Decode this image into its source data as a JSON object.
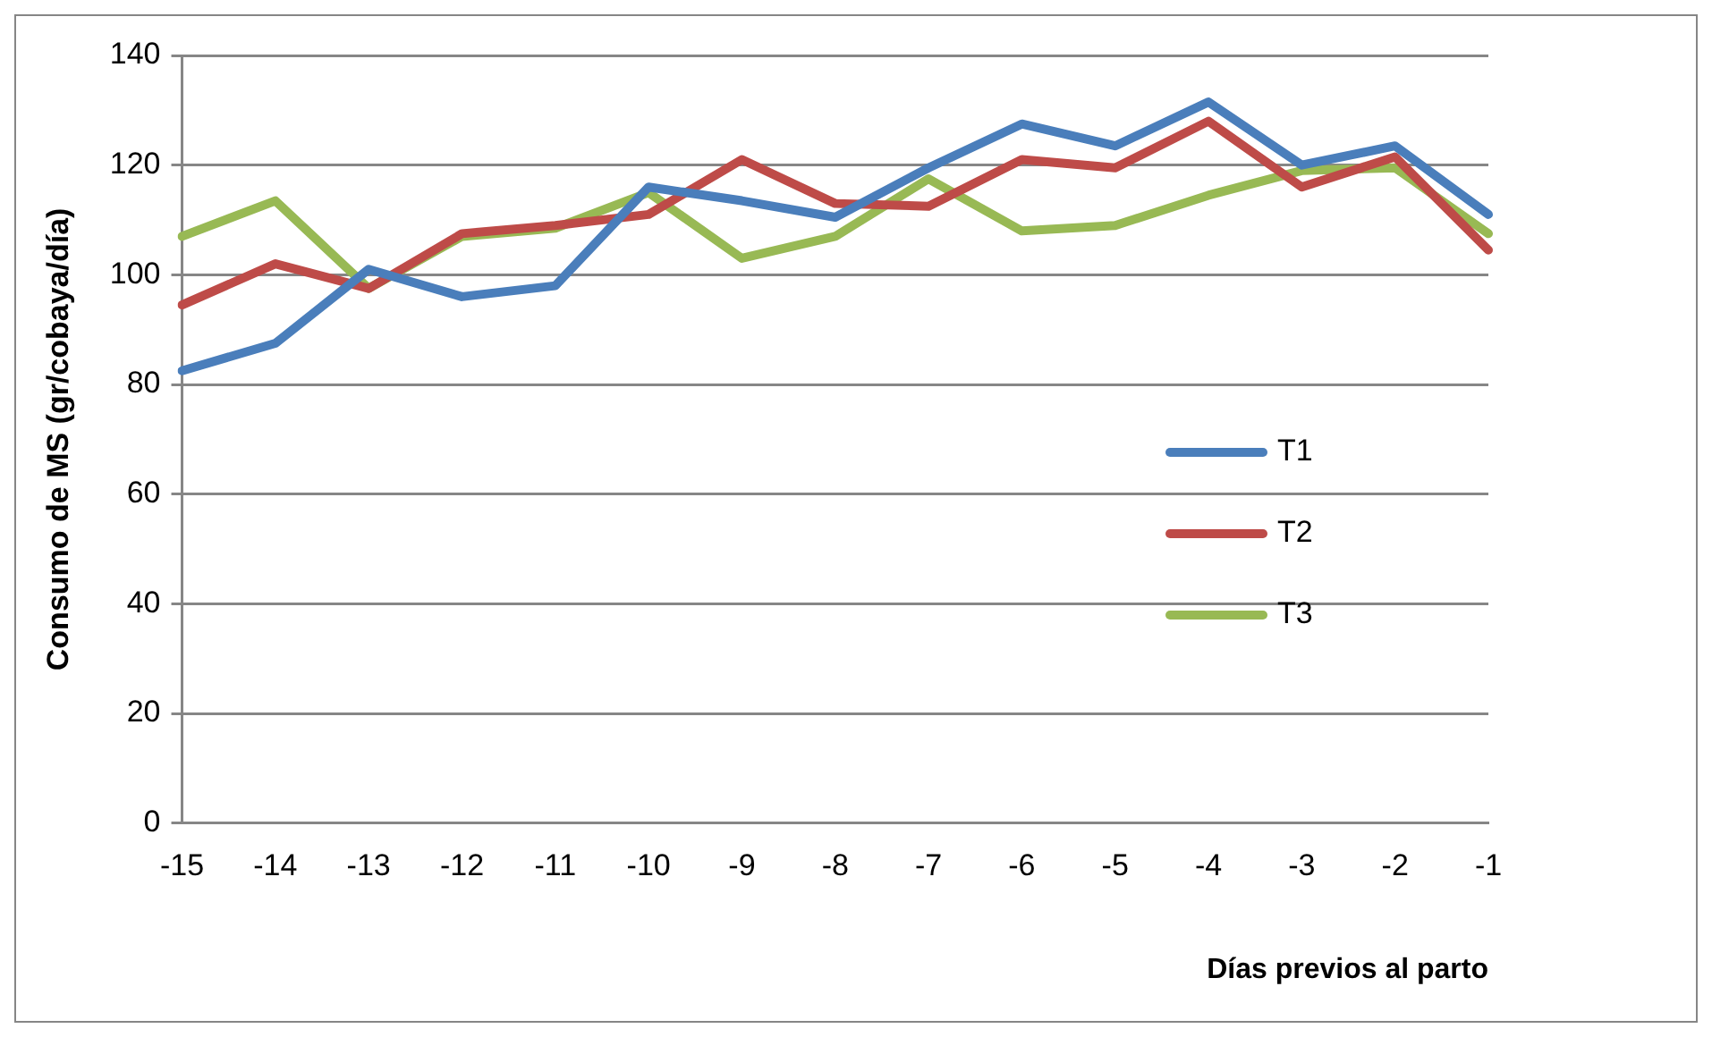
{
  "chart_data": {
    "type": "line",
    "xlabel": "Días previos al parto",
    "ylabel": "Consumo de MS (gr/cobaya/día)",
    "categories": [
      "-15",
      "-14",
      "-13",
      "-12",
      "-11",
      "-10",
      "-9",
      "-8",
      "-7",
      "-6",
      "-5",
      "-4",
      "-3",
      "-2",
      "-1"
    ],
    "series": [
      {
        "name": "T1",
        "color": "#4a7ebb",
        "values": [
          82.5,
          87.5,
          101,
          96,
          98,
          116,
          113.5,
          110.5,
          119.5,
          127.5,
          123.5,
          131.5,
          120,
          123.5,
          111
        ]
      },
      {
        "name": "T2",
        "color": "#be4b48",
        "values": [
          94.5,
          102,
          97.5,
          107.5,
          109,
          111,
          121,
          113,
          112.5,
          121,
          119.5,
          128,
          116,
          121.5,
          104.5
        ]
      },
      {
        "name": "T3",
        "color": "#98b954",
        "values": [
          107,
          113.5,
          97.5,
          107,
          108.5,
          115,
          103,
          107,
          117.5,
          108,
          109,
          114.5,
          119,
          119.5,
          107.5
        ]
      }
    ],
    "ylim": [
      0,
      140
    ],
    "yticks": [
      0,
      20,
      40,
      60,
      80,
      100,
      120,
      140
    ],
    "grid": "y",
    "legend": "right",
    "marker": "none",
    "line_style": "solid"
  }
}
